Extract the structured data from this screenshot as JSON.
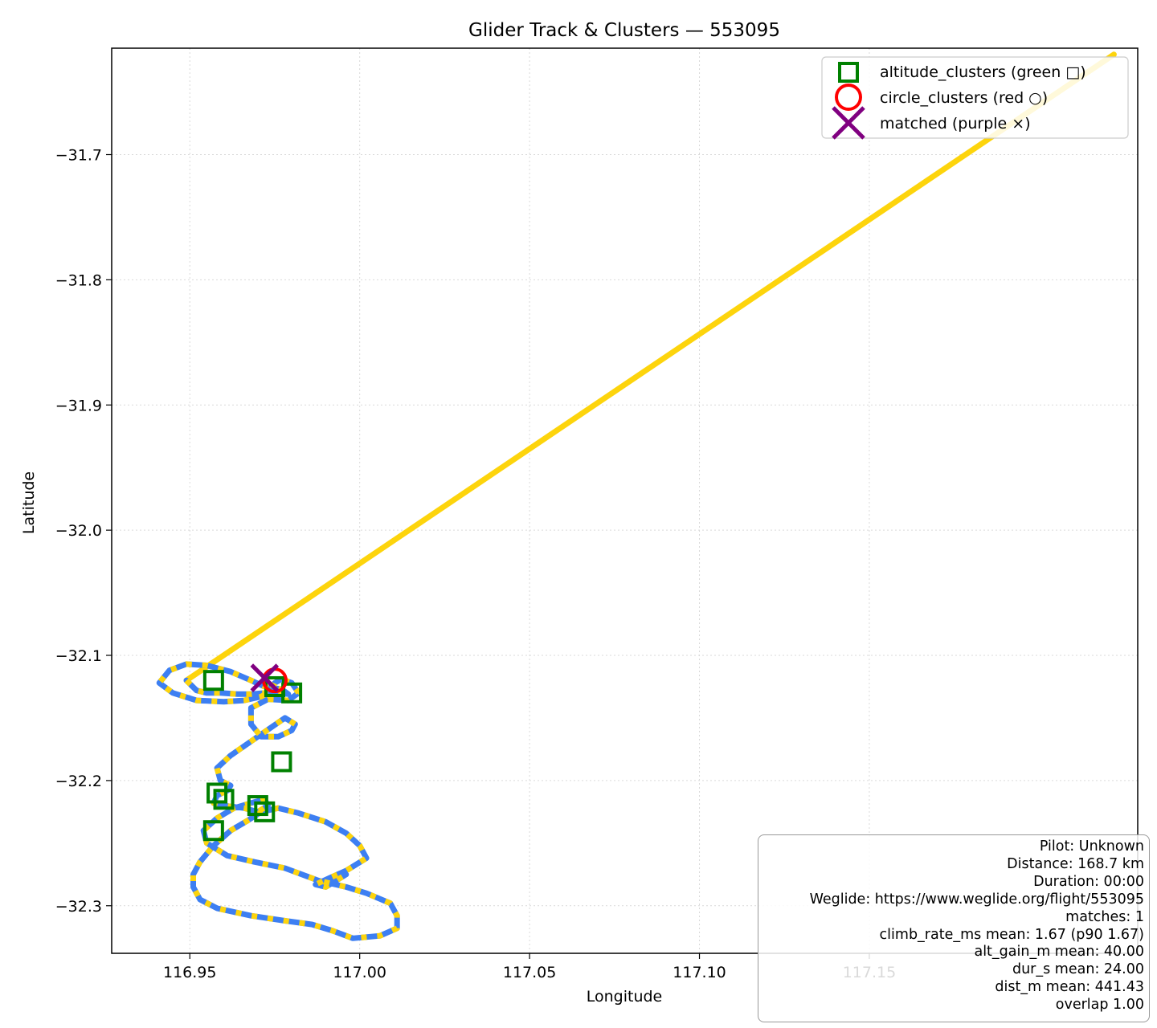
{
  "chart_data": {
    "type": "scatter",
    "title": "Glider Track & Clusters — 553095",
    "xlabel": "Longitude",
    "ylabel": "Latitude",
    "xlim": [
      116.927,
      117.229
    ],
    "ylim": [
      -32.338,
      -31.615
    ],
    "xticks": [
      116.95,
      117.0,
      117.05,
      117.1,
      117.15
    ],
    "xtick_labels": [
      "116.95",
      "117.00",
      "117.05",
      "117.10",
      "117.15"
    ],
    "yticks": [
      -31.7,
      -31.8,
      -31.9,
      -32.0,
      -32.1,
      -32.2,
      -32.3
    ],
    "ytick_labels": [
      "−31.7",
      "−31.8",
      "−31.9",
      "−32.0",
      "−32.1",
      "−32.2",
      "−32.3"
    ],
    "grid": true,
    "legend_position": "upper right",
    "colors": {
      "track_climb": "#fdd40c",
      "track_glide": "#3d7ff2",
      "altitude_clusters": "#008000",
      "circle_clusters": "#ff0000",
      "matched": "#800080"
    },
    "legend": [
      {
        "label": "altitude_clusters (green □)",
        "marker": "square"
      },
      {
        "label": "circle_clusters (red ○)",
        "marker": "circle"
      },
      {
        "label": "matched (purple ×)",
        "marker": "x"
      }
    ],
    "track": {
      "lon": [
        116.949,
        116.952,
        116.955,
        116.959,
        116.964,
        116.968,
        116.972,
        116.976,
        116.979,
        116.977,
        116.972,
        116.968,
        116.962,
        116.955,
        116.949,
        116.944,
        116.941,
        116.945,
        116.952,
        116.96,
        116.966,
        116.971,
        116.974,
        116.975,
        116.977,
        116.98,
        116.982,
        116.979,
        116.973,
        116.968,
        116.968,
        116.971,
        116.976,
        116.98,
        116.981,
        116.978,
        116.97,
        116.962,
        116.958,
        116.959,
        116.962,
        116.961,
        116.958,
        116.957,
        116.96,
        116.966,
        116.97,
        116.973,
        116.972,
        116.968,
        116.963,
        116.958,
        116.954,
        116.955,
        116.961,
        116.969,
        116.978,
        116.988,
        116.996,
        117.002,
        117.009,
        117.011,
        117.011,
        117.006,
        116.998,
        116.992,
        116.986,
        116.978,
        116.968,
        116.958,
        116.953,
        116.951,
        116.951,
        116.953,
        116.957,
        116.962,
        116.967,
        116.971,
        116.976,
        116.982,
        116.99,
        116.996,
        117.0,
        117.002,
        116.996,
        116.991,
        116.987,
        116.99,
        116.996
      ],
      "lat": [
        -32.12,
        -32.128,
        -32.13,
        -32.13,
        -32.131,
        -32.131,
        -32.13,
        -32.13,
        -32.131,
        -32.127,
        -32.125,
        -32.12,
        -32.113,
        -32.108,
        -32.107,
        -32.112,
        -32.122,
        -32.13,
        -32.136,
        -32.137,
        -32.136,
        -32.133,
        -32.128,
        -32.122,
        -32.119,
        -32.122,
        -32.13,
        -32.136,
        -32.135,
        -32.142,
        -32.155,
        -32.165,
        -32.165,
        -32.16,
        -32.155,
        -32.15,
        -32.165,
        -32.18,
        -32.19,
        -32.2,
        -32.204,
        -32.208,
        -32.212,
        -32.218,
        -32.22,
        -32.222,
        -32.225,
        -32.22,
        -32.215,
        -32.218,
        -32.222,
        -32.23,
        -32.24,
        -32.25,
        -32.26,
        -32.265,
        -32.27,
        -32.28,
        -32.285,
        -32.29,
        -32.298,
        -32.308,
        -32.318,
        -32.324,
        -32.326,
        -32.32,
        -32.315,
        -32.312,
        -32.308,
        -32.302,
        -32.295,
        -32.285,
        -32.275,
        -32.265,
        -32.252,
        -32.24,
        -32.232,
        -32.225,
        -32.222,
        -32.226,
        -32.233,
        -32.242,
        -32.252,
        -32.262,
        -32.272,
        -32.278,
        -32.283,
        -32.285,
        -32.275
      ]
    },
    "direct_line": {
      "lon": [
        116.949,
        117.222
      ],
      "lat": [
        -32.12,
        -31.62
      ]
    },
    "altitude_clusters": {
      "lon": [
        116.957,
        116.975,
        116.98,
        116.977,
        116.958,
        116.96,
        116.97,
        116.972,
        116.957
      ],
      "lat": [
        -32.12,
        -32.125,
        -32.13,
        -32.185,
        -32.21,
        -32.215,
        -32.22,
        -32.225,
        -32.24
      ]
    },
    "circle_clusters": {
      "lon": [
        116.975
      ],
      "lat": [
        -32.12
      ]
    },
    "matched": {
      "lon": [
        116.972
      ],
      "lat": [
        -32.118
      ]
    },
    "info_box": [
      "Pilot: Unknown",
      "Distance: 168.7 km",
      "Duration: 00:00",
      "Weglide: https://www.weglide.org/flight/553095",
      "matches: 1",
      "climb_rate_ms mean: 1.67 (p90 1.67)",
      "alt_gain_m mean: 40.00",
      "dur_s mean: 24.00",
      "dist_m mean: 441.43",
      "overlap 1.00"
    ]
  }
}
